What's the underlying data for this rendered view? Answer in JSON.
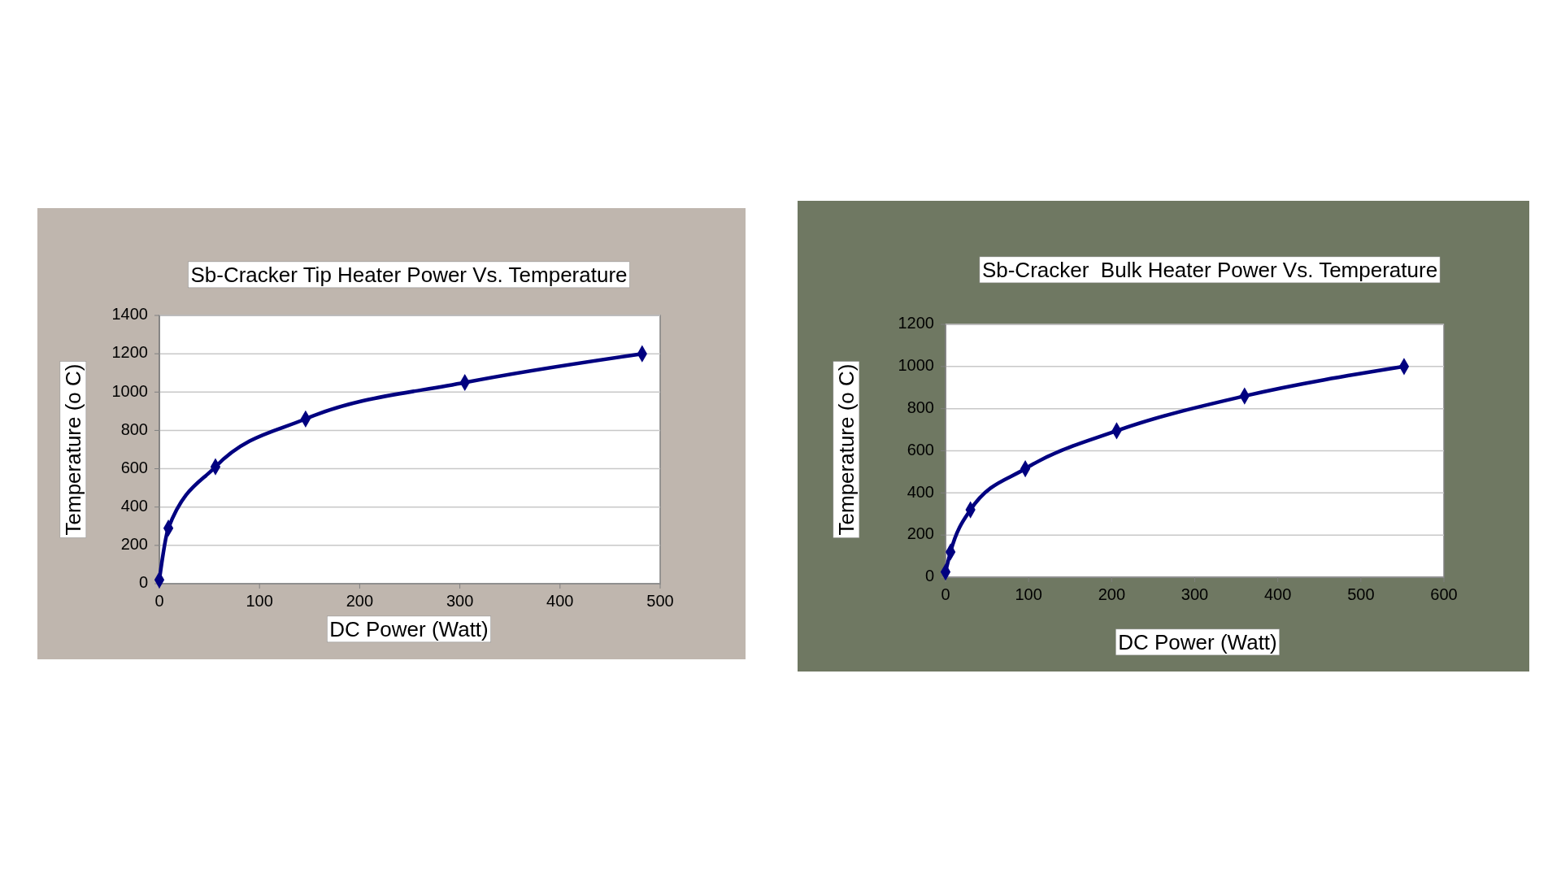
{
  "chart_data": [
    {
      "type": "line",
      "title": "Sb-Cracker Tip Heater Power Vs. Temperature",
      "xlabel": "DC Power (Watt)",
      "ylabel": "Temperature (o C)",
      "x": [
        0,
        9,
        56,
        146,
        305,
        482
      ],
      "series": [
        {
          "color": "#000080",
          "values": [
            20,
            290,
            610,
            860,
            1050,
            1200
          ]
        }
      ],
      "xlim": [
        0,
        500
      ],
      "xticks": [
        0,
        100,
        200,
        300,
        400,
        500
      ],
      "ylim": [
        0,
        1400
      ],
      "yticks": [
        0,
        200,
        400,
        600,
        800,
        1000,
        1200,
        1400
      ],
      "grid": "y",
      "marker": "diamond"
    },
    {
      "type": "line",
      "title": "Sb-Cracker  Bulk Heater Power Vs. Temperature",
      "xlabel": "DC Power (Watt)",
      "ylabel": "Temperature (o C)",
      "x": [
        0,
        6,
        30,
        96,
        206,
        360,
        552
      ],
      "series": [
        {
          "color": "#000080",
          "values": [
            25,
            120,
            320,
            515,
            695,
            860,
            1000
          ]
        }
      ],
      "xlim": [
        0,
        600
      ],
      "xticks": [
        0,
        100,
        200,
        300,
        400,
        500,
        600
      ],
      "ylim": [
        0,
        1200
      ],
      "yticks": [
        0,
        200,
        400,
        600,
        800,
        1000,
        1200
      ],
      "grid": "y",
      "marker": "diamond"
    }
  ]
}
